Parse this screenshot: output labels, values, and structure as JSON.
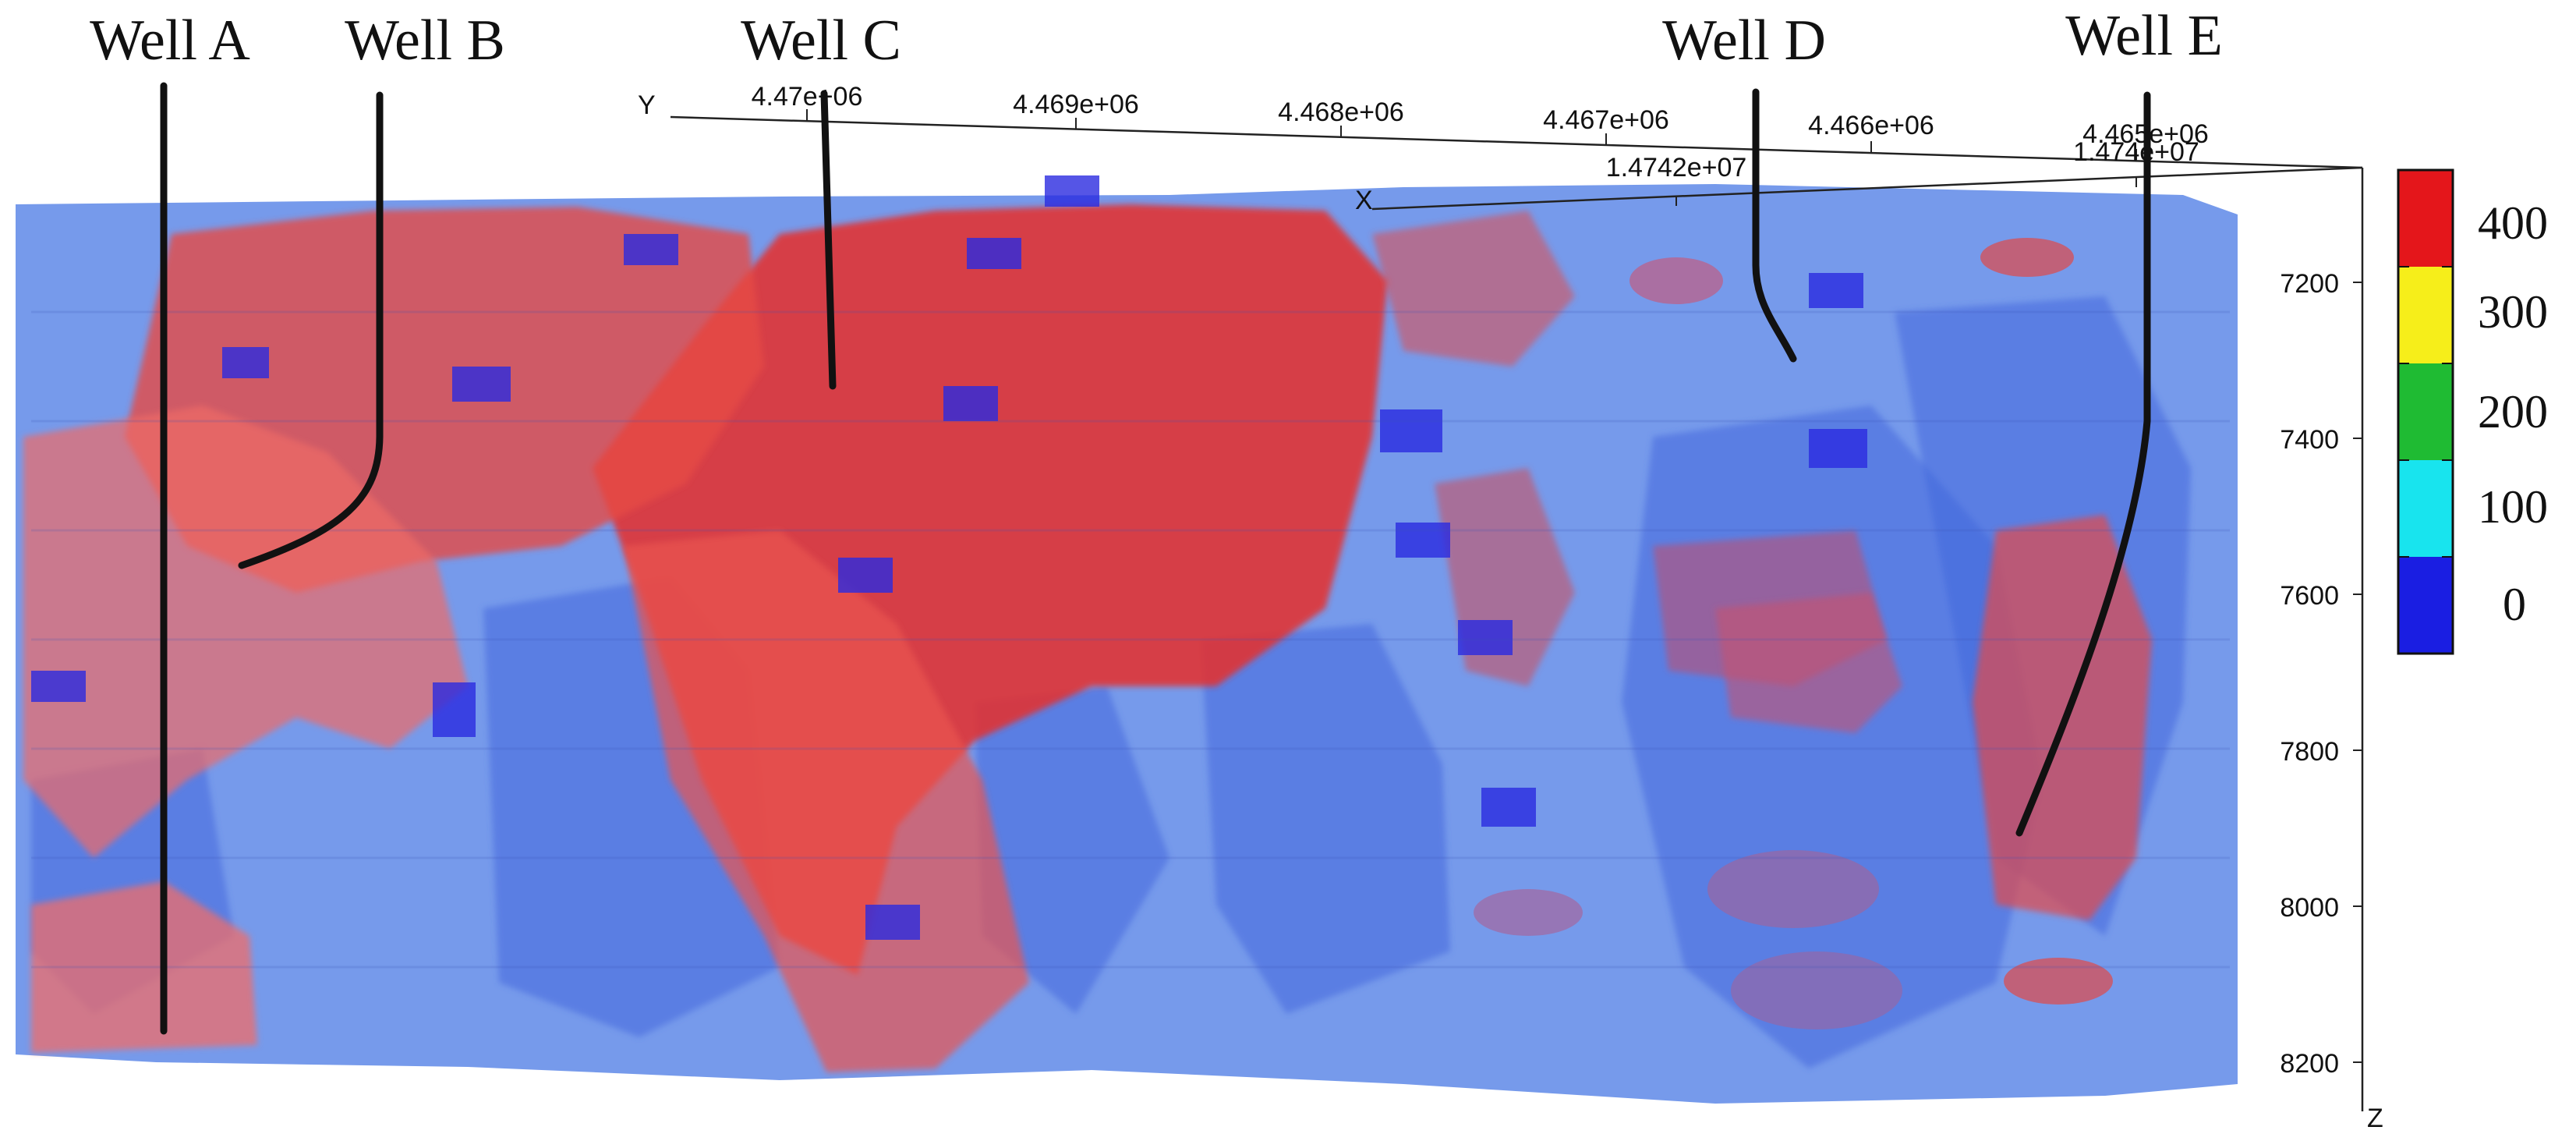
{
  "wells": [
    {
      "name": "Well A"
    },
    {
      "name": "Well B"
    },
    {
      "name": "Well C"
    },
    {
      "name": "Well D"
    },
    {
      "name": "Well E"
    }
  ],
  "axes": {
    "y": {
      "name": "Y",
      "ticks": [
        "4.47e+06",
        "4.469e+06",
        "4.468e+06",
        "4.467e+06",
        "4.466e+06",
        "4.465e+06"
      ]
    },
    "x": {
      "name": "X",
      "ticks": [
        "1.4742e+07",
        "1.474e+07"
      ]
    },
    "z": {
      "name": "Z",
      "ticks": [
        "7200",
        "7400",
        "7600",
        "7800",
        "8000",
        "8200"
      ]
    }
  },
  "legend": {
    "labels": [
      "400",
      "300",
      "200",
      "100",
      "0"
    ],
    "colors": [
      "#e4161b",
      "#f6ee1a",
      "#1fbb33",
      "#18e4ee",
      "#1a1ee2"
    ]
  },
  "colors": {
    "model_blue": "#5b87e6",
    "model_blue_dark": "#3a5fd8",
    "model_red": "#e63a35",
    "model_red_light": "#ee7a78",
    "model_purple": "#8a5fc4",
    "well_path": "#111111"
  }
}
